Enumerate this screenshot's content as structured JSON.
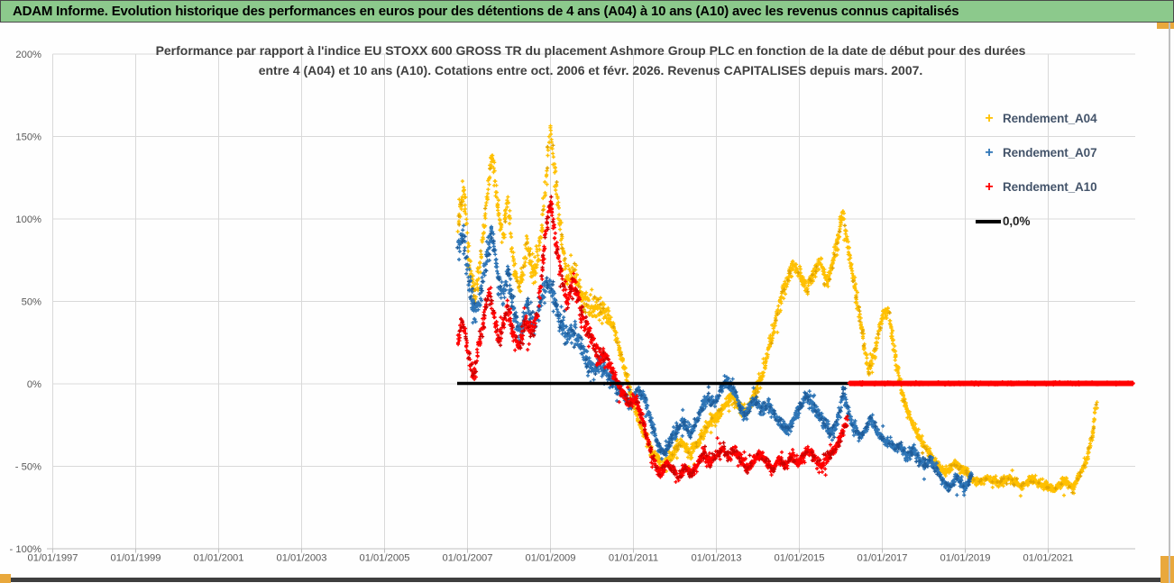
{
  "banner": {
    "text": "ADAM Informe. Evolution historique des performances en euros pour des détentions de 4 ans (A04) à 10 ans (A10) avec les revenus connus capitalisés"
  },
  "colors": {
    "banner_bg": "#8CC98C",
    "gold_accent": "#E9A83C",
    "grid": "#D9D9D9",
    "axis_line": "#BFBFBF",
    "axis_text": "#595959",
    "title_text": "#404040",
    "legend_text": "#44546A",
    "series_a04": "#FFC000",
    "series_a07": "#2E75B6",
    "series_a10": "#FF0000",
    "zero_line": "#000000"
  },
  "chart_data": {
    "type": "scatter",
    "title_line1": "Performance par rapport à l'indice EU STOXX 600 GROSS TR  du placement Ashmore Group PLC en fonction de la date de début pour des durées",
    "title_line2": "entre 4 (A04) et 10 ans (A10). Cotations entre oct. 2006 et févr. 2026. Revenus CAPITALISES depuis mars. 2007.",
    "x_axis": {
      "labels": [
        "01/01/1997",
        "01/01/1999",
        "01/01/2001",
        "01/01/2003",
        "01/01/2005",
        "01/01/2007",
        "01/01/2009",
        "01/01/2011",
        "01/01/2013",
        "01/01/2015",
        "01/01/2017",
        "01/01/2019",
        "01/01/2021"
      ],
      "first_year": 1997,
      "tick_interval_years": 2,
      "plot_max_year": 2023.1
    },
    "y_axis": {
      "labels": [
        "200%",
        "150%",
        "100%",
        "50%",
        "0%",
        "- 50%",
        "- 100%"
      ],
      "values": [
        200,
        150,
        100,
        50,
        0,
        -50,
        -100
      ],
      "min": -100,
      "max": 200
    },
    "legend": [
      {
        "name": "Rendement_A04",
        "color": "#FFC000",
        "marker": "+"
      },
      {
        "name": "Rendement_A07",
        "color": "#2E75B6",
        "marker": "+"
      },
      {
        "name": "Rendement_A10",
        "color": "#FF0000",
        "marker": "+"
      },
      {
        "name": "0,0%",
        "color": "#000000",
        "marker": "line"
      }
    ],
    "zero_line": {
      "value": 0,
      "start_year": 2006.75,
      "end_year": 2016.2
    },
    "series": [
      {
        "name": "Rendement_A04",
        "color": "#FFC000",
        "dark_color": "#E2A500",
        "dark_frac": 0.06,
        "start": 2006.77,
        "end": 2022.18,
        "jitter_schedule": [
          [
            2010.4,
            9
          ],
          [
            2014.0,
            4
          ],
          [
            2017.4,
            5
          ],
          [
            2023.0,
            3
          ]
        ],
        "anchors_year_pct": [
          [
            2006.77,
            95
          ],
          [
            2006.85,
            112
          ],
          [
            2006.92,
            118
          ],
          [
            2007.03,
            75
          ],
          [
            2007.18,
            52
          ],
          [
            2007.36,
            85
          ],
          [
            2007.53,
            128
          ],
          [
            2007.6,
            140
          ],
          [
            2007.73,
            105
          ],
          [
            2007.86,
            90
          ],
          [
            2007.97,
            112
          ],
          [
            2008.12,
            70
          ],
          [
            2008.27,
            58
          ],
          [
            2008.44,
            85
          ],
          [
            2008.6,
            65
          ],
          [
            2008.77,
            90
          ],
          [
            2008.9,
            125
          ],
          [
            2008.99,
            155
          ],
          [
            2009.08,
            135
          ],
          [
            2009.21,
            100
          ],
          [
            2009.38,
            65
          ],
          [
            2009.55,
            68
          ],
          [
            2009.75,
            55
          ],
          [
            2009.95,
            45
          ],
          [
            2010.14,
            48
          ],
          [
            2010.34,
            40
          ],
          [
            2010.51,
            35
          ],
          [
            2010.73,
            15
          ],
          [
            2010.95,
            -8
          ],
          [
            2011.16,
            -25
          ],
          [
            2011.42,
            -40
          ],
          [
            2011.71,
            -50
          ],
          [
            2011.92,
            -44
          ],
          [
            2012.14,
            -35
          ],
          [
            2012.36,
            -42
          ],
          [
            2012.58,
            -35
          ],
          [
            2012.79,
            -25
          ],
          [
            2013.01,
            -20
          ],
          [
            2013.23,
            -12
          ],
          [
            2013.38,
            -7
          ],
          [
            2013.55,
            -14
          ],
          [
            2013.73,
            -17
          ],
          [
            2013.9,
            -8
          ],
          [
            2014.1,
            5
          ],
          [
            2014.31,
            25
          ],
          [
            2014.53,
            50
          ],
          [
            2014.68,
            60
          ],
          [
            2014.86,
            72
          ],
          [
            2015.03,
            65
          ],
          [
            2015.19,
            58
          ],
          [
            2015.36,
            68
          ],
          [
            2015.51,
            75
          ],
          [
            2015.66,
            60
          ],
          [
            2015.82,
            75
          ],
          [
            2015.95,
            90
          ],
          [
            2016.05,
            104
          ],
          [
            2016.16,
            85
          ],
          [
            2016.31,
            62
          ],
          [
            2016.49,
            35
          ],
          [
            2016.66,
            8
          ],
          [
            2016.81,
            18
          ],
          [
            2016.99,
            40
          ],
          [
            2017.14,
            45
          ],
          [
            2017.29,
            20
          ],
          [
            2017.47,
            -5
          ],
          [
            2017.68,
            -22
          ],
          [
            2017.95,
            -35
          ],
          [
            2018.23,
            -46
          ],
          [
            2018.51,
            -54
          ],
          [
            2018.73,
            -48
          ],
          [
            2018.99,
            -53
          ],
          [
            2019.25,
            -60
          ],
          [
            2019.53,
            -57
          ],
          [
            2019.81,
            -60
          ],
          [
            2020.08,
            -57
          ],
          [
            2020.34,
            -62
          ],
          [
            2020.62,
            -58
          ],
          [
            2020.9,
            -62
          ],
          [
            2021.16,
            -64
          ],
          [
            2021.38,
            -58
          ],
          [
            2021.6,
            -63
          ],
          [
            2021.77,
            -55
          ],
          [
            2021.94,
            -45
          ],
          [
            2022.07,
            -30
          ],
          [
            2022.16,
            -12
          ]
        ]
      },
      {
        "name": "Rendement_A07",
        "color": "#2E75B6",
        "dark_color": "#1F5C99",
        "dark_frac": 0.15,
        "start": 2006.77,
        "end": 2019.16,
        "jitter_schedule": [
          [
            2010.4,
            8
          ],
          [
            2016.4,
            4.5
          ],
          [
            2020.0,
            3.5
          ]
        ],
        "anchors_year_pct": [
          [
            2006.77,
            82
          ],
          [
            2006.9,
            90
          ],
          [
            2007.03,
            62
          ],
          [
            2007.18,
            42
          ],
          [
            2007.36,
            60
          ],
          [
            2007.53,
            88
          ],
          [
            2007.6,
            92
          ],
          [
            2007.73,
            65
          ],
          [
            2007.86,
            52
          ],
          [
            2007.97,
            68
          ],
          [
            2008.12,
            42
          ],
          [
            2008.27,
            30
          ],
          [
            2008.44,
            48
          ],
          [
            2008.6,
            35
          ],
          [
            2008.77,
            50
          ],
          [
            2008.95,
            62
          ],
          [
            2009.05,
            55
          ],
          [
            2009.2,
            42
          ],
          [
            2009.4,
            28
          ],
          [
            2009.6,
            32
          ],
          [
            2009.8,
            18
          ],
          [
            2010.0,
            8
          ],
          [
            2010.2,
            12
          ],
          [
            2010.4,
            5
          ],
          [
            2010.6,
            -2
          ],
          [
            2010.8,
            -8
          ],
          [
            2010.95,
            -14
          ],
          [
            2011.1,
            -4
          ],
          [
            2011.25,
            -8
          ],
          [
            2011.42,
            -22
          ],
          [
            2011.6,
            -38
          ],
          [
            2011.75,
            -42
          ],
          [
            2011.9,
            -34
          ],
          [
            2012.05,
            -28
          ],
          [
            2012.2,
            -22
          ],
          [
            2012.36,
            -30
          ],
          [
            2012.5,
            -24
          ],
          [
            2012.65,
            -14
          ],
          [
            2012.8,
            -8
          ],
          [
            2012.95,
            -12
          ],
          [
            2013.1,
            -4
          ],
          [
            2013.25,
            2
          ],
          [
            2013.38,
            -2
          ],
          [
            2013.55,
            -12
          ],
          [
            2013.68,
            -20
          ],
          [
            2013.8,
            -14
          ],
          [
            2013.95,
            -10
          ],
          [
            2014.1,
            -16
          ],
          [
            2014.25,
            -12
          ],
          [
            2014.4,
            -18
          ],
          [
            2014.55,
            -24
          ],
          [
            2014.7,
            -28
          ],
          [
            2014.85,
            -22
          ],
          [
            2015.0,
            -15
          ],
          [
            2015.15,
            -8
          ],
          [
            2015.3,
            -12
          ],
          [
            2015.45,
            -18
          ],
          [
            2015.6,
            -24
          ],
          [
            2015.75,
            -30
          ],
          [
            2015.9,
            -25
          ],
          [
            2016.0,
            -12
          ],
          [
            2016.07,
            -3
          ],
          [
            2016.15,
            -15
          ],
          [
            2016.3,
            -25
          ],
          [
            2016.45,
            -32
          ],
          [
            2016.6,
            -28
          ],
          [
            2016.7,
            -20
          ],
          [
            2016.8,
            -24
          ],
          [
            2016.9,
            -30
          ],
          [
            2017.0,
            -33
          ],
          [
            2017.15,
            -36
          ],
          [
            2017.3,
            -39
          ],
          [
            2017.45,
            -38
          ],
          [
            2017.6,
            -44
          ],
          [
            2017.75,
            -40
          ],
          [
            2017.9,
            -46
          ],
          [
            2018.05,
            -50
          ],
          [
            2018.15,
            -45
          ],
          [
            2018.3,
            -52
          ],
          [
            2018.45,
            -58
          ],
          [
            2018.6,
            -64
          ],
          [
            2018.7,
            -60
          ],
          [
            2018.8,
            -56
          ],
          [
            2018.9,
            -60
          ],
          [
            2019.0,
            -64
          ],
          [
            2019.1,
            -58
          ],
          [
            2019.16,
            -55
          ]
        ]
      },
      {
        "name": "Rendement_A10",
        "color": "#FF0000",
        "dark_color": "#CC0000",
        "dark_frac": 0.18,
        "start": 2006.77,
        "end": 2016.16,
        "jitter_schedule": [
          [
            2010.4,
            7
          ],
          [
            2017.0,
            4
          ]
        ],
        "anchors_year_pct": [
          [
            2006.77,
            22
          ],
          [
            2006.85,
            38
          ],
          [
            2006.95,
            30
          ],
          [
            2007.05,
            12
          ],
          [
            2007.15,
            5
          ],
          [
            2007.25,
            20
          ],
          [
            2007.36,
            35
          ],
          [
            2007.45,
            48
          ],
          [
            2007.55,
            55
          ],
          [
            2007.65,
            38
          ],
          [
            2007.75,
            25
          ],
          [
            2007.85,
            35
          ],
          [
            2007.97,
            48
          ],
          [
            2008.1,
            30
          ],
          [
            2008.25,
            22
          ],
          [
            2008.4,
            38
          ],
          [
            2008.55,
            30
          ],
          [
            2008.7,
            45
          ],
          [
            2008.8,
            70
          ],
          [
            2008.9,
            95
          ],
          [
            2009.0,
            112
          ],
          [
            2009.1,
            90
          ],
          [
            2009.25,
            68
          ],
          [
            2009.4,
            50
          ],
          [
            2009.55,
            62
          ],
          [
            2009.7,
            48
          ],
          [
            2009.85,
            35
          ],
          [
            2010.0,
            28
          ],
          [
            2010.15,
            15
          ],
          [
            2010.3,
            18
          ],
          [
            2010.45,
            10
          ],
          [
            2010.6,
            2
          ],
          [
            2010.75,
            -6
          ],
          [
            2010.9,
            -12
          ],
          [
            2011.05,
            -8
          ],
          [
            2011.2,
            -20
          ],
          [
            2011.35,
            -35
          ],
          [
            2011.5,
            -48
          ],
          [
            2011.65,
            -55
          ],
          [
            2011.8,
            -48
          ],
          [
            2011.95,
            -52
          ],
          [
            2012.1,
            -57
          ],
          [
            2012.25,
            -50
          ],
          [
            2012.4,
            -55
          ],
          [
            2012.55,
            -48
          ],
          [
            2012.7,
            -42
          ],
          [
            2012.85,
            -48
          ],
          [
            2013.0,
            -44
          ],
          [
            2013.15,
            -38
          ],
          [
            2013.3,
            -44
          ],
          [
            2013.45,
            -40
          ],
          [
            2013.6,
            -46
          ],
          [
            2013.75,
            -52
          ],
          [
            2013.9,
            -46
          ],
          [
            2014.05,
            -42
          ],
          [
            2014.2,
            -47
          ],
          [
            2014.35,
            -52
          ],
          [
            2014.5,
            -46
          ],
          [
            2014.65,
            -50
          ],
          [
            2014.8,
            -44
          ],
          [
            2014.95,
            -48
          ],
          [
            2015.1,
            -44
          ],
          [
            2015.25,
            -40
          ],
          [
            2015.4,
            -46
          ],
          [
            2015.55,
            -50
          ],
          [
            2015.7,
            -44
          ],
          [
            2015.85,
            -40
          ],
          [
            2015.95,
            -35
          ],
          [
            2016.05,
            -28
          ],
          [
            2016.16,
            -22
          ]
        ],
        "flat_zero_segment": {
          "value": 0,
          "start_year": 2016.2,
          "end_year": 2023.05
        }
      }
    ]
  }
}
